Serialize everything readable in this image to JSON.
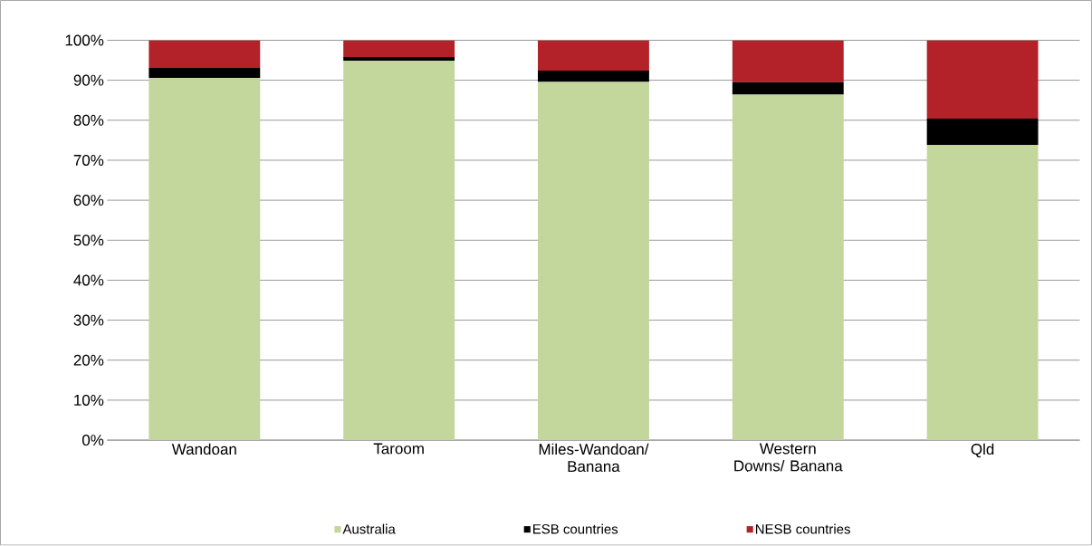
{
  "chart_data": {
    "type": "bar",
    "stacked": true,
    "categories": [
      "Wandoan",
      "Taroom",
      "Miles-Wandoan/ Banana",
      "Western Downs/ Banana",
      "Qld"
    ],
    "series": [
      {
        "name": "Australia",
        "color": "#c3d69b",
        "values": [
          90.6,
          94.9,
          89.6,
          86.4,
          73.8
        ]
      },
      {
        "name": "ESB countries",
        "color": "#000000",
        "values": [
          2.5,
          0.9,
          2.8,
          3.1,
          6.6
        ]
      },
      {
        "name": "NESB countries",
        "color": "#b22228",
        "values": [
          6.9,
          4.2,
          7.6,
          10.5,
          19.6
        ]
      }
    ],
    "ylim": [
      0,
      100
    ],
    "yticks": [
      {
        "value": 0,
        "label": "0%"
      },
      {
        "value": 10,
        "label": "10%"
      },
      {
        "value": 20,
        "label": "20%"
      },
      {
        "value": 30,
        "label": "30%"
      },
      {
        "value": 40,
        "label": "40%"
      },
      {
        "value": 50,
        "label": "50%"
      },
      {
        "value": 60,
        "label": "60%"
      },
      {
        "value": 70,
        "label": "70%"
      },
      {
        "value": 80,
        "label": "80%"
      },
      {
        "value": 90,
        "label": "90%"
      },
      {
        "value": 100,
        "label": "100%"
      }
    ],
    "grid": "y",
    "legend": "bottom"
  }
}
